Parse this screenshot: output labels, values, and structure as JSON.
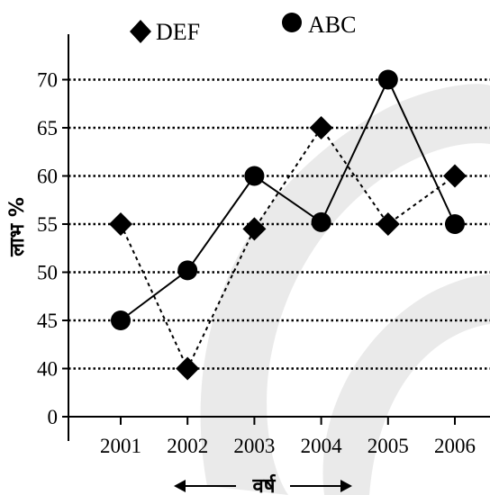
{
  "chart_data": {
    "type": "line",
    "title": "",
    "xlabel": "वर्ष",
    "ylabel": "लाभ %",
    "categories": [
      "2001",
      "2002",
      "2003",
      "2004",
      "2005",
      "2006"
    ],
    "y_ticks": [
      "0",
      "40",
      "45",
      "50",
      "55",
      "60",
      "65",
      "70"
    ],
    "y_tick_values": [
      35,
      40,
      45,
      50,
      55,
      60,
      65,
      70
    ],
    "ylim": [
      35,
      75
    ],
    "y_axis_break": true,
    "grid": "horizontal dotted",
    "legend_position": "top",
    "series": [
      {
        "name": "DEF",
        "marker": "diamond",
        "line": "dashed",
        "values": [
          55,
          40,
          54.5,
          65,
          55,
          60
        ]
      },
      {
        "name": "ABC",
        "marker": "circle",
        "line": "solid",
        "values": [
          45,
          50.2,
          60,
          55.2,
          70,
          55
        ]
      }
    ],
    "colors": {
      "series": "#000000",
      "grid": "#000000",
      "watermark": "#d0d0d0"
    }
  }
}
